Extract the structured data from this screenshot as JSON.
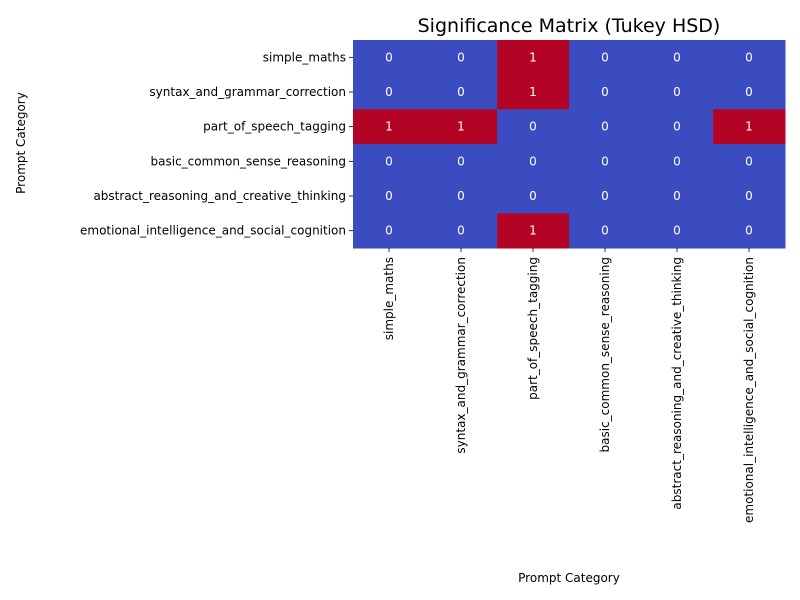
{
  "chart_data": {
    "type": "heatmap",
    "title": "Significance Matrix (Tukey HSD)",
    "xlabel": "Prompt Category",
    "ylabel": "Prompt Category",
    "rows": [
      "simple_maths",
      "syntax_and_grammar_correction",
      "part_of_speech_tagging",
      "basic_common_sense_reasoning",
      "abstract_reasoning_and_creative_thinking",
      "emotional_intelligence_and_social_cognition"
    ],
    "columns": [
      "simple_maths",
      "syntax_and_grammar_correction",
      "part_of_speech_tagging",
      "basic_common_sense_reasoning",
      "abstract_reasoning_and_creative_thinking",
      "emotional_intelligence_and_social_cognition"
    ],
    "values": [
      [
        0,
        0,
        1,
        0,
        0,
        0
      ],
      [
        0,
        0,
        1,
        0,
        0,
        0
      ],
      [
        1,
        1,
        0,
        0,
        0,
        1
      ],
      [
        0,
        0,
        0,
        0,
        0,
        0
      ],
      [
        0,
        0,
        0,
        0,
        0,
        0
      ],
      [
        0,
        0,
        1,
        0,
        0,
        0
      ]
    ],
    "colormap": "coolwarm",
    "colors": {
      "low": "#3b4cc0",
      "high": "#b40426"
    },
    "value_range": [
      0,
      1
    ],
    "annotate": true,
    "colorbar": false
  }
}
